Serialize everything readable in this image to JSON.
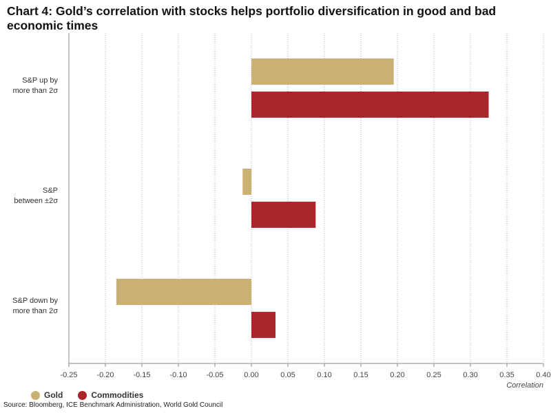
{
  "title": "Chart 4: Gold’s correlation with stocks helps portfolio diversification in good and bad economic times",
  "source": "Source: Bloomberg, ICE Benchmark Administration, World Gold Council",
  "colors": {
    "gold": "#c9b073",
    "commodities": "#ab262c"
  },
  "chart_data": {
    "type": "bar",
    "orientation": "horizontal",
    "categories": [
      "S&P up by\nmore than 2σ",
      "S&P\nbetween ±2σ",
      "S&P down by\nmore than 2σ"
    ],
    "series": [
      {
        "name": "Gold",
        "values": [
          0.195,
          -0.012,
          -0.185
        ]
      },
      {
        "name": "Commodities",
        "values": [
          0.325,
          0.088,
          0.033
        ]
      }
    ],
    "xlabel": "Correlation",
    "xlim": [
      -0.25,
      0.4
    ],
    "xticks": [
      "-0.25",
      "-0.20",
      "-0.15",
      "-0.10",
      "-0.05",
      "0.00",
      "0.05",
      "0.10",
      "0.15",
      "0.20",
      "0.25",
      "0.30",
      "0.35",
      "0.40"
    ],
    "grid": true,
    "legend": "bottom-left"
  }
}
